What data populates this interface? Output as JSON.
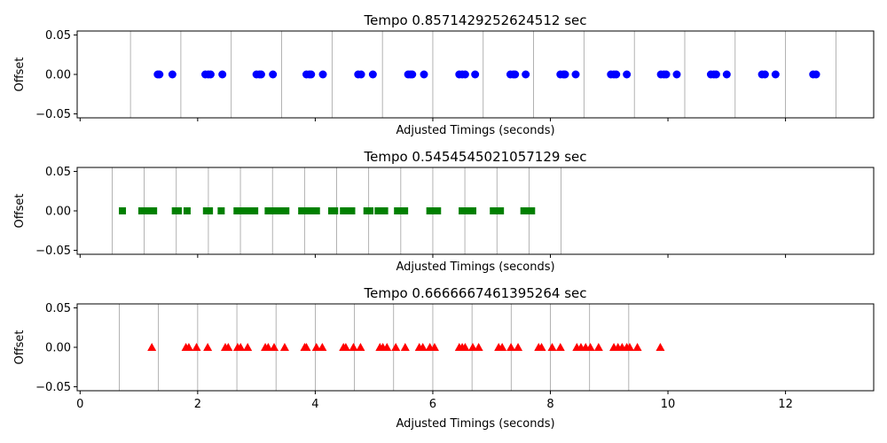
{
  "chart_data": [
    {
      "type": "scatter",
      "title": "Tempo 0.8571429252624512 sec",
      "xlabel": "Adjusted Timings (seconds)",
      "ylabel": "Offset",
      "show_xticklabels": false,
      "marker": "circle",
      "color": "#0000ff",
      "xlim": [
        -0.05,
        13.5
      ],
      "ylim": [
        -0.055,
        0.055
      ],
      "yticks": [
        -0.05,
        0.0,
        0.05
      ],
      "ytick_labels": [
        "−0.05",
        "0.00",
        "0.05"
      ],
      "xticks": [
        0,
        2,
        4,
        6,
        8,
        10,
        12
      ],
      "beat_lines": [
        0.857,
        1.714,
        2.571,
        3.429,
        4.286,
        5.143,
        6.0,
        6.857,
        7.714,
        8.571,
        9.429,
        10.286,
        11.143,
        12.0,
        12.857
      ],
      "x": [
        1.32,
        1.35,
        1.57,
        2.13,
        2.18,
        2.22,
        2.42,
        3.0,
        3.05,
        3.08,
        3.28,
        3.85,
        3.9,
        3.93,
        4.13,
        4.73,
        4.78,
        4.98,
        5.58,
        5.62,
        5.65,
        5.85,
        6.45,
        6.5,
        6.55,
        6.72,
        7.32,
        7.37,
        7.4,
        7.58,
        8.17,
        8.22,
        8.25,
        8.43,
        9.03,
        9.08,
        9.12,
        9.3,
        9.88,
        9.93,
        9.97,
        10.15,
        10.73,
        10.78,
        10.82,
        11.0,
        11.6,
        11.65,
        11.83,
        12.47,
        12.52
      ],
      "y": 0.0
    },
    {
      "type": "scatter",
      "title": "Tempo 0.5454545021057129 sec",
      "xlabel": "Adjusted Timings (seconds)",
      "ylabel": "Offset",
      "show_xticklabels": false,
      "marker": "square",
      "color": "#008000",
      "xlim": [
        -0.05,
        13.5
      ],
      "ylim": [
        -0.055,
        0.055
      ],
      "yticks": [
        -0.05,
        0.0,
        0.05
      ],
      "ytick_labels": [
        "−0.05",
        "0.00",
        "0.05"
      ],
      "xticks": [
        0,
        2,
        4,
        6,
        8,
        10,
        12
      ],
      "beat_lines": [
        0.545,
        1.091,
        1.636,
        2.182,
        2.727,
        3.273,
        3.818,
        4.364,
        4.909,
        5.455,
        6.0,
        6.545,
        7.091,
        7.636,
        8.182
      ],
      "x": [
        0.72,
        1.05,
        1.12,
        1.18,
        1.25,
        1.62,
        1.67,
        1.82,
        2.15,
        2.2,
        2.4,
        2.67,
        2.72,
        2.78,
        2.85,
        2.9,
        2.97,
        3.2,
        3.25,
        3.32,
        3.38,
        3.43,
        3.5,
        3.77,
        3.82,
        3.9,
        3.95,
        4.02,
        4.28,
        4.33,
        4.48,
        4.55,
        4.62,
        4.88,
        4.93,
        5.07,
        5.13,
        5.18,
        5.4,
        5.45,
        5.52,
        5.95,
        6.0,
        6.08,
        6.5,
        6.55,
        6.62,
        6.68,
        7.03,
        7.08,
        7.15,
        7.55,
        7.62,
        7.68
      ],
      "y": 0.0
    },
    {
      "type": "scatter",
      "title": "Tempo 0.6666667461395264 sec",
      "xlabel": "Adjusted Timings (seconds)",
      "ylabel": "Offset",
      "show_xticklabels": true,
      "marker": "triangle",
      "color": "#ff0000",
      "xlim": [
        -0.05,
        13.5
      ],
      "ylim": [
        -0.055,
        0.055
      ],
      "yticks": [
        -0.05,
        0.0,
        0.05
      ],
      "ytick_labels": [
        "−0.05",
        "0.00",
        "0.05"
      ],
      "xticks": [
        0,
        2,
        4,
        6,
        8,
        10,
        12
      ],
      "xtick_labels": [
        "0",
        "2",
        "4",
        "6",
        "8",
        "10",
        "12"
      ],
      "beat_lines": [
        0.667,
        1.333,
        2.0,
        2.667,
        3.333,
        4.0,
        4.667,
        5.333,
        6.0,
        6.667,
        7.333,
        8.0,
        8.667,
        9.333
      ],
      "x": [
        1.22,
        1.8,
        1.85,
        1.98,
        2.17,
        2.47,
        2.52,
        2.68,
        2.73,
        2.85,
        3.15,
        3.2,
        3.3,
        3.48,
        3.82,
        3.85,
        4.02,
        4.12,
        4.48,
        4.52,
        4.65,
        4.77,
        5.1,
        5.15,
        5.22,
        5.37,
        5.53,
        5.77,
        5.83,
        5.95,
        6.03,
        6.45,
        6.5,
        6.55,
        6.68,
        6.78,
        7.12,
        7.18,
        7.33,
        7.45,
        7.8,
        7.85,
        8.03,
        8.17,
        8.45,
        8.52,
        8.6,
        8.68,
        8.82,
        9.08,
        9.15,
        9.22,
        9.3,
        9.35,
        9.48,
        9.87
      ],
      "y": 0.0
    }
  ]
}
